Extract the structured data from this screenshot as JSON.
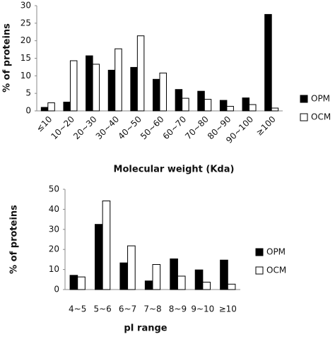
{
  "chart_data": [
    {
      "type": "bar",
      "x_label": "Molecular weight (Kda)",
      "y_label": "% of proteins",
      "categories": [
        "≤10",
        "10~20",
        "20~30",
        "30~40",
        "40~50",
        "50~60",
        "60~70",
        "70~80",
        "80~90",
        "90~100",
        "≥100"
      ],
      "series": [
        {
          "name": "OPM",
          "color": "#000000",
          "values": [
            1,
            2.5,
            15.7,
            11.6,
            12.4,
            9,
            6.1,
            5.6,
            3,
            3.7,
            27.5
          ]
        },
        {
          "name": "OCM",
          "color": "#ffffff",
          "values": [
            2.3,
            14.3,
            13.3,
            17.7,
            21.4,
            10.8,
            3.6,
            3.3,
            1.3,
            1.8,
            0.8
          ]
        }
      ],
      "ylim": [
        0,
        30
      ],
      "yticks": [
        0,
        5,
        10,
        15,
        20,
        25,
        30
      ],
      "legend": "right"
    },
    {
      "type": "bar",
      "x_label": "pI range",
      "y_label": "% of proteins",
      "categories": [
        "4~5",
        "5~6",
        "6~7",
        "7~8",
        "8~9",
        "9~10",
        "≥10"
      ],
      "series": [
        {
          "name": "OPM",
          "color": "#000000",
          "values": [
            7.1,
            32.5,
            13.3,
            4.3,
            15.3,
            9.8,
            14.7
          ]
        },
        {
          "name": "OCM",
          "color": "#ffffff",
          "values": [
            6.3,
            44.2,
            21.8,
            12.5,
            6.7,
            3.7,
            2.7
          ]
        }
      ],
      "ylim": [
        0,
        50
      ],
      "yticks": [
        0,
        10,
        20,
        30,
        40,
        50
      ],
      "legend": "right"
    }
  ]
}
